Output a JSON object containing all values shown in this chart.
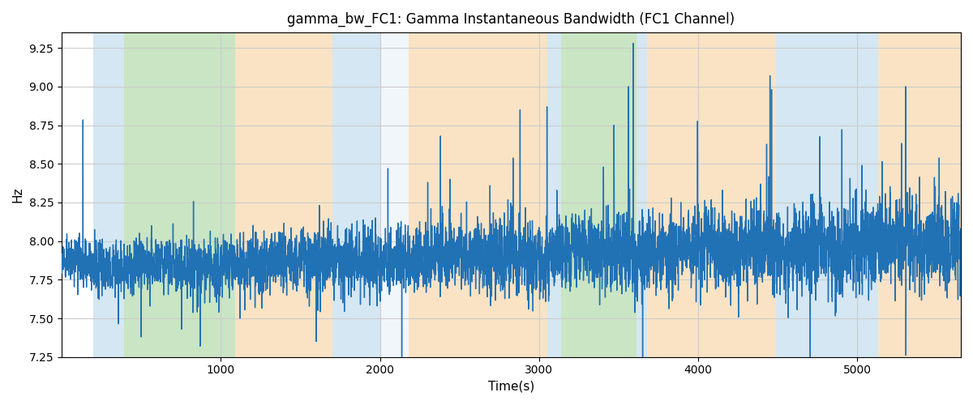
{
  "title": "gamma_bw_FC1: Gamma Instantaneous Bandwidth (FC1 Channel)",
  "xlabel": "Time(s)",
  "ylabel": "Hz",
  "ylim": [
    7.25,
    9.35
  ],
  "xlim": [
    0,
    5650
  ],
  "line_color": "#2171b5",
  "line_width": 1.0,
  "colored_bands": [
    {
      "xmin": 200,
      "xmax": 390,
      "color": "#abd0e6",
      "alpha": 0.5
    },
    {
      "xmin": 390,
      "xmax": 1090,
      "color": "#88c67a",
      "alpha": 0.45
    },
    {
      "xmin": 1090,
      "xmax": 1700,
      "color": "#f5c98a",
      "alpha": 0.5
    },
    {
      "xmin": 1700,
      "xmax": 2000,
      "color": "#abd0e6",
      "alpha": 0.5
    },
    {
      "xmin": 2000,
      "xmax": 2180,
      "color": "#dde9f5",
      "alpha": 0.4
    },
    {
      "xmin": 2180,
      "xmax": 3050,
      "color": "#f5c98a",
      "alpha": 0.5
    },
    {
      "xmin": 3050,
      "xmax": 3140,
      "color": "#abd0e6",
      "alpha": 0.5
    },
    {
      "xmin": 3140,
      "xmax": 3610,
      "color": "#88c67a",
      "alpha": 0.45
    },
    {
      "xmin": 3610,
      "xmax": 3680,
      "color": "#abd0e6",
      "alpha": 0.5
    },
    {
      "xmin": 3680,
      "xmax": 4490,
      "color": "#f5c98a",
      "alpha": 0.5
    },
    {
      "xmin": 4490,
      "xmax": 5060,
      "color": "#abd0e6",
      "alpha": 0.5
    },
    {
      "xmin": 5060,
      "xmax": 5130,
      "color": "#abd0e6",
      "alpha": 0.5
    },
    {
      "xmin": 5130,
      "xmax": 5650,
      "color": "#f5c98a",
      "alpha": 0.5
    }
  ],
  "time_start": 0,
  "time_end": 5650,
  "n_points": 5650,
  "base_mean": 7.9,
  "base_std": 0.12,
  "title_fontsize": 12,
  "label_fontsize": 11,
  "tick_fontsize": 10
}
